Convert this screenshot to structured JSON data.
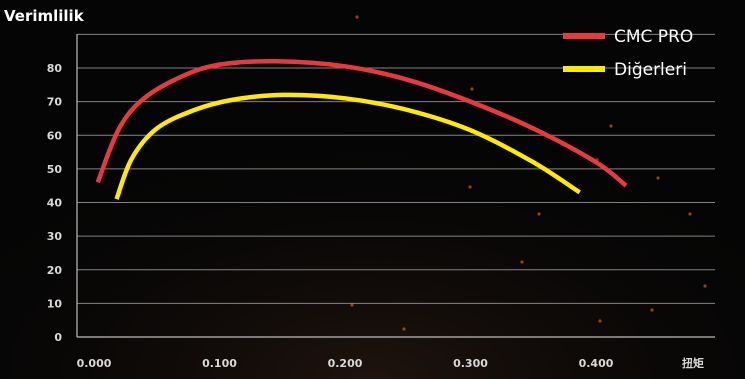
{
  "chart_data": {
    "type": "line",
    "ylabel": "Verimlilik",
    "xlabel": "扭矩",
    "xlim": [
      0.0,
      0.44
    ],
    "ylim": [
      0,
      90
    ],
    "x_ticks": [
      "0.000",
      "0.100",
      "0.200",
      "0.300",
      "0.400"
    ],
    "y_ticks": [
      "0",
      "10",
      "20",
      "30",
      "40",
      "50",
      "60",
      "70",
      "80"
    ],
    "grid": true,
    "legend_position": "top-right",
    "series": [
      {
        "name": "CMC PRO",
        "color": "#e83a3e",
        "x": [
          0.003,
          0.02,
          0.04,
          0.07,
          0.1,
          0.145,
          0.2,
          0.25,
          0.3,
          0.35,
          0.4,
          0.424
        ],
        "y": [
          46,
          62,
          71,
          77.5,
          81,
          82,
          80.5,
          76.5,
          70,
          62,
          52,
          45
        ]
      },
      {
        "name": "Diğerleri",
        "color": "#ffea00",
        "x": [
          0.018,
          0.03,
          0.05,
          0.08,
          0.11,
          0.15,
          0.2,
          0.25,
          0.3,
          0.35,
          0.387
        ],
        "y": [
          41,
          53,
          62,
          67.5,
          70.5,
          72,
          71,
          67.5,
          61.5,
          52,
          43
        ]
      }
    ]
  }
}
